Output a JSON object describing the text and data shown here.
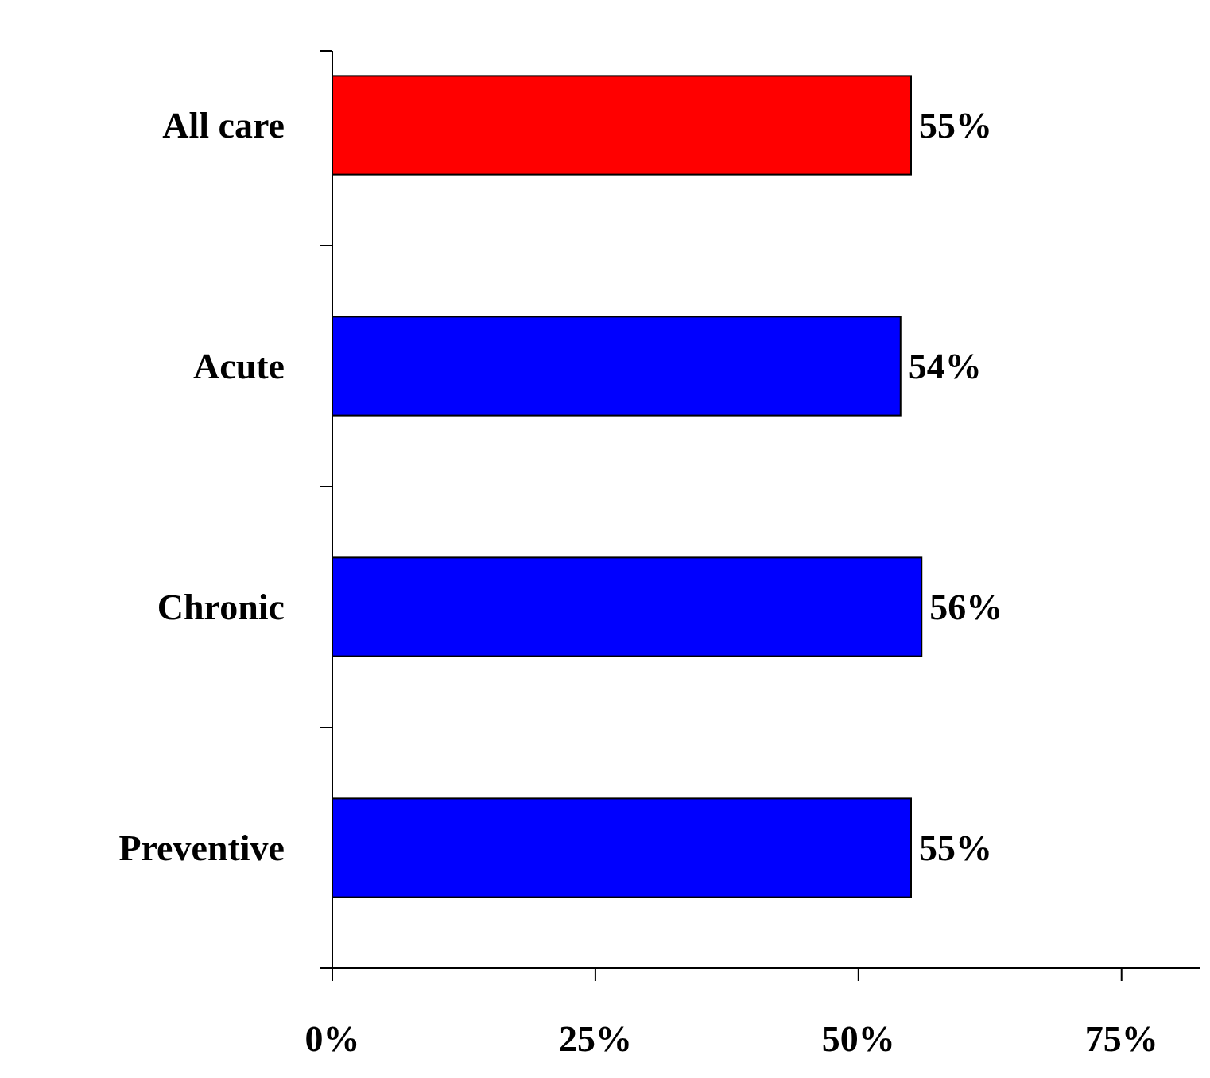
{
  "chart_data": {
    "type": "bar",
    "orientation": "horizontal",
    "categories": [
      "All care",
      "Acute",
      "Chronic",
      "Preventive"
    ],
    "values": [
      55,
      54,
      56,
      55
    ],
    "colors": [
      "#ff0000",
      "#0000ff",
      "#0000ff",
      "#0000ff"
    ],
    "value_labels": [
      "55%",
      "54%",
      "56%",
      "55%"
    ],
    "xlim": [
      0,
      82.5
    ],
    "xticks": [
      {
        "value": 0,
        "label": "0%"
      },
      {
        "value": 25,
        "label": "25%"
      },
      {
        "value": 50,
        "label": "50%"
      },
      {
        "value": 75,
        "label": "75%"
      }
    ],
    "grid": false
  }
}
